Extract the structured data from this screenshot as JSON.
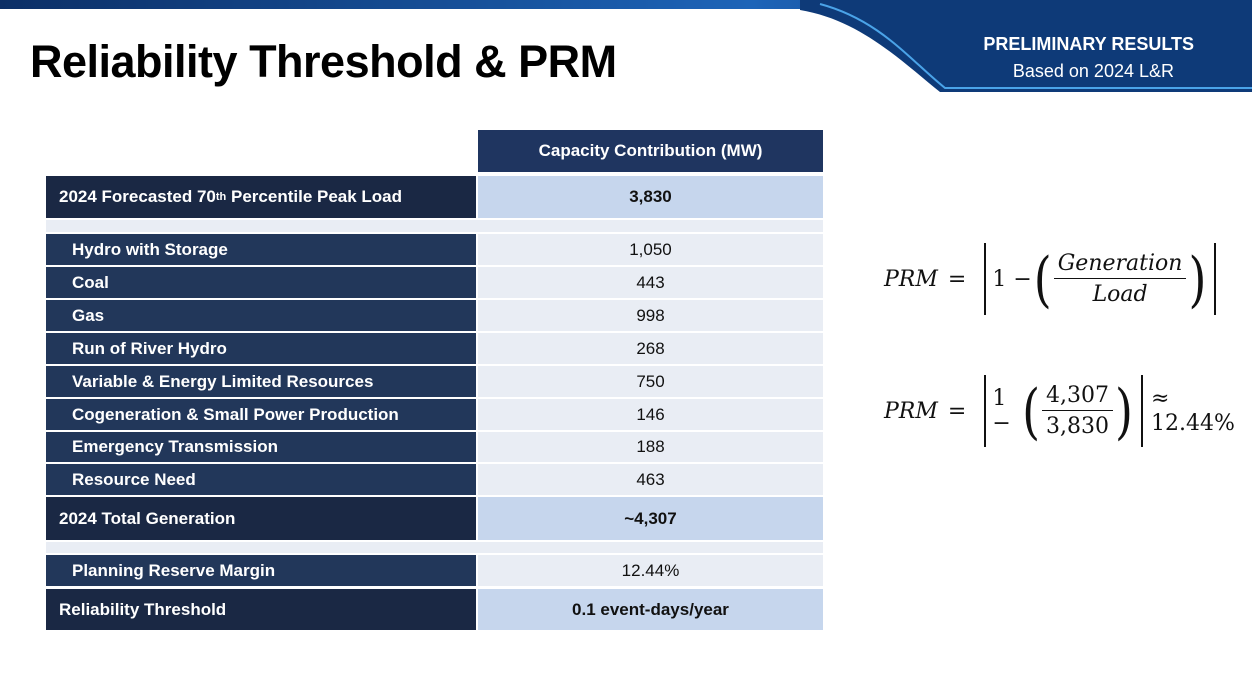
{
  "header": {
    "title": "Reliability Threshold & PRM",
    "badge_line1": "PRELIMINARY RESULTS",
    "badge_line2": "Based on 2024 L&R"
  },
  "table": {
    "column_header": "Capacity Contribution (MW)",
    "rows": [
      {
        "label": {
          "before": "2024 Forecasted 70",
          "sup": "th",
          "after": " Percentile Peak Load"
        },
        "value": "3,830"
      },
      {
        "label": "Hydro with Storage",
        "value": "1,050"
      },
      {
        "label": "Coal",
        "value": "443"
      },
      {
        "label": "Gas",
        "value": "998"
      },
      {
        "label": "Run of River Hydro",
        "value": "268"
      },
      {
        "label": "Variable & Energy Limited Resources",
        "value": "750"
      },
      {
        "label": "Cogeneration & Small Power Production",
        "value": "146"
      },
      {
        "label": "Emergency Transmission",
        "value": "188"
      },
      {
        "label": "Resource Need",
        "value": "463"
      },
      {
        "label": "2024 Total Generation",
        "value": "~4,307"
      },
      {
        "label": "Planning Reserve Margin",
        "value": "12.44%"
      },
      {
        "label": "Reliability Threshold",
        "value": "0.1 event-days/year"
      }
    ]
  },
  "formulas": [
    {
      "lhs": "PRM",
      "eq": "=",
      "one_minus": "1 −",
      "numerator": "Generation",
      "denominator": "Load"
    },
    {
      "lhs": "PRM",
      "eq": "=",
      "one_minus": "1 −",
      "numerator": "4,307",
      "denominator": "3,830",
      "approx": "≈ 12.44%"
    }
  ]
}
